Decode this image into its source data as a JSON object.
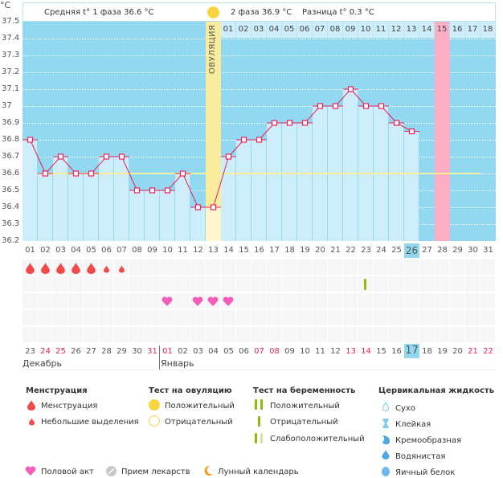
{
  "header": {
    "unit_label": "°C",
    "phase1_text": "Средняя t° 1 фаза 36.6 °C",
    "phase2_text": "2 фаза 36.9 °C",
    "difference_text": "Разница t° 0.3 °C",
    "ovulation_label": "ОВУЛЯЦИЯ",
    "phase2_days": [
      "01",
      "02",
      "03",
      "04",
      "05",
      "06",
      "07",
      "08",
      "09",
      "10",
      "11",
      "12",
      "13",
      "14",
      "15",
      "16",
      "17",
      "18"
    ]
  },
  "colors": {
    "background_band": "#92d8f1",
    "bar_fill": "#cdedfa",
    "line": "#e8235a",
    "ovulation": "#fbeb9c",
    "predicted_period": "#fcafc4",
    "average_line": "#f6ee98",
    "weekend_text": "#e8235a"
  },
  "chart_data": {
    "type": "line",
    "title": "",
    "xlabel": "",
    "ylabel": "°C",
    "ylim": [
      36.2,
      37.5
    ],
    "yticks": [
      "37.5",
      "37.4",
      "37.3",
      "37.2",
      "37.1",
      "37",
      "36.9",
      "36.8",
      "36.7",
      "36.6",
      "36.5",
      "36.4",
      "36.3",
      "36.2"
    ],
    "x": [
      "01",
      "02",
      "03",
      "04",
      "05",
      "06",
      "07",
      "08",
      "09",
      "10",
      "11",
      "12",
      "13",
      "14",
      "15",
      "16",
      "17",
      "18",
      "19",
      "20",
      "21",
      "22",
      "23",
      "24",
      "25",
      "26",
      "27",
      "28",
      "29",
      "30",
      "31"
    ],
    "series": [
      {
        "name": "Базальная температура",
        "values": [
          36.8,
          36.6,
          36.7,
          36.6,
          36.6,
          36.7,
          36.7,
          36.5,
          36.5,
          36.5,
          36.6,
          36.4,
          36.4,
          36.7,
          36.8,
          36.8,
          36.9,
          36.9,
          36.9,
          37.0,
          37.0,
          37.1,
          37.0,
          37.0,
          36.9,
          36.85,
          null,
          null,
          null,
          null,
          null
        ]
      }
    ],
    "average_phase1": 36.6,
    "ovulation_day": "13",
    "predicted_period_day": "28",
    "current_day": "26",
    "grid": true
  },
  "events": {
    "menstruation": [
      {
        "day": "01",
        "type": "heavy"
      },
      {
        "day": "02",
        "type": "heavy"
      },
      {
        "day": "03",
        "type": "heavy"
      },
      {
        "day": "04",
        "type": "heavy"
      },
      {
        "day": "05",
        "type": "heavy"
      },
      {
        "day": "06",
        "type": "light"
      },
      {
        "day": "07",
        "type": "light"
      }
    ],
    "pregnancy_test": [
      {
        "day": "23",
        "type": "negative"
      }
    ],
    "intercourse": [
      "10",
      "12",
      "13",
      "14"
    ]
  },
  "dates": {
    "labels": [
      "23",
      "24",
      "25",
      "26",
      "27",
      "28",
      "29",
      "30",
      "31",
      "01",
      "02",
      "03",
      "04",
      "05",
      "06",
      "07",
      "08",
      "09",
      "10",
      "11",
      "12",
      "13",
      "14",
      "15",
      "16",
      "17",
      "18",
      "19",
      "20",
      "21",
      "22"
    ],
    "red_indices": [
      1,
      2,
      8,
      9,
      15,
      16,
      21,
      22,
      29,
      30
    ],
    "current_index": 25,
    "months": [
      "Декабрь",
      "Январь"
    ]
  },
  "legend": {
    "menstruation": {
      "title": "Менструация",
      "items": [
        "Менструация",
        "Небольшие выделения"
      ]
    },
    "ovulation_test": {
      "title": "Тест на овуляцию",
      "items": [
        "Положительный",
        "Отрицательный"
      ]
    },
    "pregnancy_test": {
      "title": "Тест на беременность",
      "items": [
        "Положительный",
        "Отрицательный",
        "Слабоположительный"
      ]
    },
    "cervical_fluid": {
      "title": "Цервикальная жидкость",
      "items": [
        "Сухо",
        "Клейкая",
        "Кремообразная",
        "Водянистая",
        "Яичный белок"
      ]
    },
    "other": [
      "Половой акт",
      "Прием лекарств",
      "Лунный календарь"
    ]
  }
}
